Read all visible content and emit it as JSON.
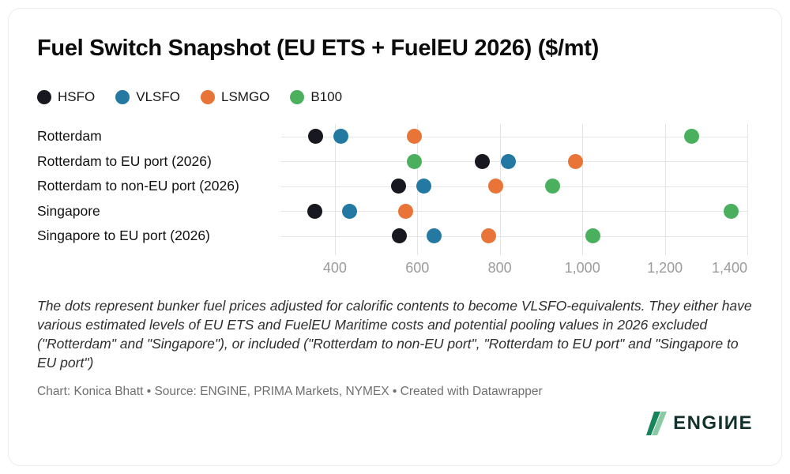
{
  "title": "Fuel Switch Snapshot (EU ETS + FuelEU 2026) ($/mt)",
  "chart_data": {
    "type": "scatter",
    "title": "Fuel Switch Snapshot (EU ETS + FuelEU 2026) ($/mt)",
    "categories": [
      "Rotterdam",
      "Rotterdam to EU port (2026)",
      "Rotterdam to non-EU port (2026)",
      "Singapore",
      "Singapore to EU port (2026)"
    ],
    "series": [
      {
        "name": "HSFO",
        "color": "#181820",
        "values": [
          353,
          757,
          554,
          352,
          556
        ]
      },
      {
        "name": "VLSFO",
        "color": "#2379a2",
        "values": [
          415,
          820,
          615,
          436,
          640
        ]
      },
      {
        "name": "LSMGO",
        "color": "#e87437",
        "values": [
          592,
          984,
          790,
          571,
          772
        ]
      },
      {
        "name": "B100",
        "color": "#4bb05e",
        "values": [
          1264,
          593,
          927,
          1360,
          1025
        ]
      }
    ],
    "xlim": [
      270,
      1400
    ],
    "xticks": {
      "values": [
        400,
        600,
        800,
        1000,
        1200,
        1400
      ],
      "labels": [
        "400",
        "600",
        "800",
        "1,000",
        "1,200",
        "1,400"
      ]
    },
    "grid": "vertical",
    "legend_position": "top",
    "xlabel": "",
    "ylabel": ""
  },
  "notes": "The dots represent bunker fuel prices adjusted for calorific contents to become VLSFO-equivalents. They either have various estimated levels of EU ETS and FuelEU Maritime costs and potential pooling values in 2026 excluded (\"Rotterdam\" and \"Singapore\"), or included (\"Rotterdam to non-EU port\", \"Rotterdam to EU port\" and \"Singapore to EU port\")",
  "attribution": "Chart: Konica Bhatt • Source: ENGINE, PRIMA Markets, NYMEX • Created with Datawrapper",
  "logo": {
    "text": "ENGIИE",
    "icon": "engine-bolt-icon",
    "icon_color_dark": "#17845c",
    "icon_color_light": "#8bc9a4"
  }
}
